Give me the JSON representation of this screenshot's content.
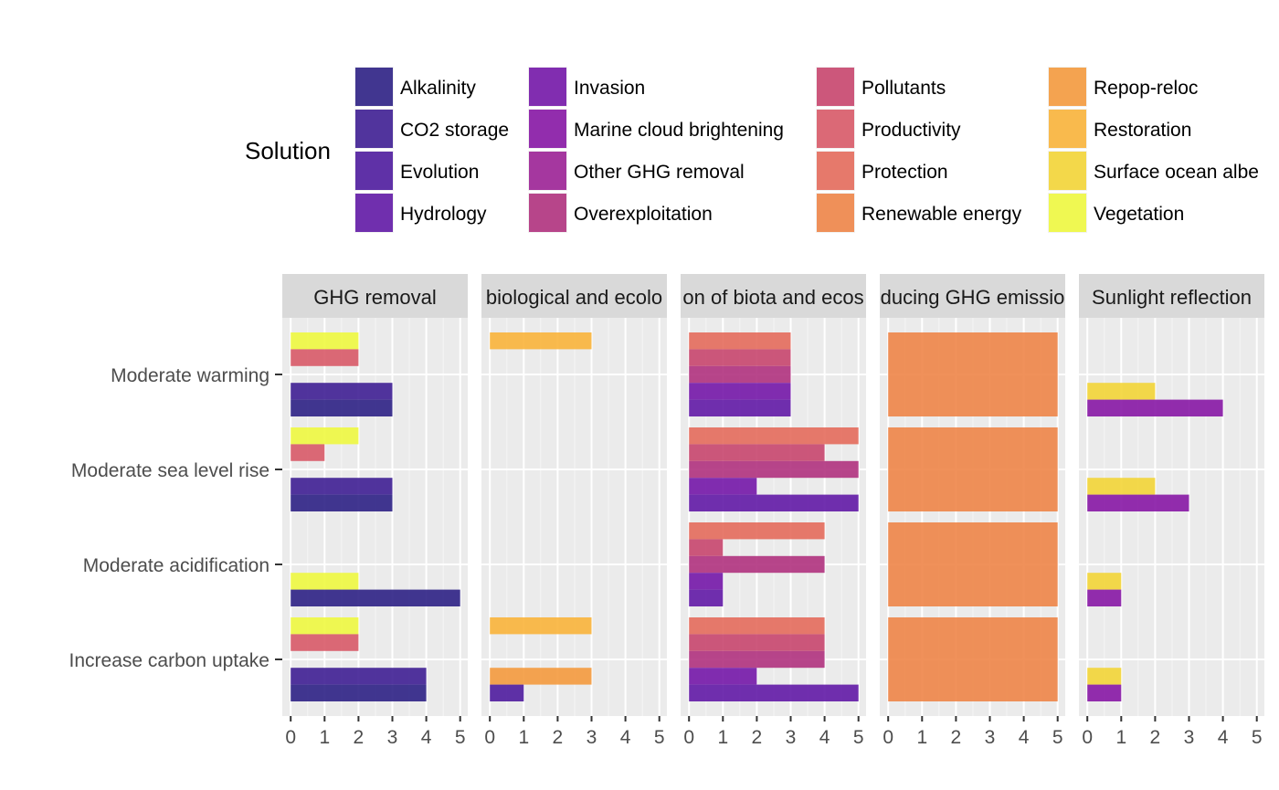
{
  "chart_data": {
    "type": "bar",
    "orientation": "horizontal",
    "facets": [
      "GHG removal",
      "biological and ecolo",
      "on of biota and ecos",
      "ducing GHG emissio",
      "Sunlight reflection"
    ],
    "categories": [
      "Moderate warming",
      "Moderate sea level rise",
      "Moderate acidification",
      "Increase carbon uptake"
    ],
    "xlim": [
      0,
      5.2
    ],
    "xticks": [
      "0",
      "1",
      "2",
      "3",
      "4",
      "5"
    ],
    "grid": true,
    "legend": {
      "title": "Solution",
      "position": "top",
      "items": [
        {
          "label": "Alkalinity",
          "color": "#2E2185"
        },
        {
          "label": "CO2 storage",
          "color": "#3F1F93"
        },
        {
          "label": "Evolution",
          "color": "#4F1C9E"
        },
        {
          "label": "Hydrology",
          "color": "#621AA6"
        },
        {
          "label": "Invasion",
          "color": "#7417A8"
        },
        {
          "label": "Marine cloud brightening",
          "color": "#8717A5"
        },
        {
          "label": "Other GHG removal",
          "color": "#9C2296"
        },
        {
          "label": "Overexploitation",
          "color": "#B0327E"
        },
        {
          "label": "Pollutants",
          "color": "#C8466E"
        },
        {
          "label": "Productivity",
          "color": "#D85A68"
        },
        {
          "label": "Protection",
          "color": "#E46B5C"
        },
        {
          "label": "Renewable energy",
          "color": "#EE8548"
        },
        {
          "label": "Repop-reloc",
          "color": "#F49A3E"
        },
        {
          "label": "Restoration",
          "color": "#FAB43B"
        },
        {
          "label": "Surface ocean albe",
          "color": "#F3D537"
        },
        {
          "label": "Vegetation",
          "color": "#EEF840"
        }
      ]
    },
    "panels": [
      {
        "facet": 0,
        "category": 0,
        "bars": [
          {
            "solution": "Vegetation",
            "value": 2
          },
          {
            "solution": "Productivity",
            "value": 2
          },
          {
            "solution": "CO2 storage",
            "value": 3
          },
          {
            "solution": "Alkalinity",
            "value": 3
          }
        ]
      },
      {
        "facet": 0,
        "category": 1,
        "bars": [
          {
            "solution": "Vegetation",
            "value": 2
          },
          {
            "solution": "Productivity",
            "value": 1
          },
          {
            "solution": "CO2 storage",
            "value": 3
          },
          {
            "solution": "Alkalinity",
            "value": 3
          }
        ]
      },
      {
        "facet": 0,
        "category": 2,
        "bars": [
          {
            "solution": "Vegetation",
            "value": 2
          },
          {
            "solution": "Alkalinity",
            "value": 5
          }
        ]
      },
      {
        "facet": 0,
        "category": 3,
        "bars": [
          {
            "solution": "Vegetation",
            "value": 2
          },
          {
            "solution": "Productivity",
            "value": 2
          },
          {
            "solution": "CO2 storage",
            "value": 4
          },
          {
            "solution": "Alkalinity",
            "value": 4
          }
        ]
      },
      {
        "facet": 1,
        "category": 0,
        "bars": [
          {
            "solution": "Restoration",
            "value": 3
          }
        ]
      },
      {
        "facet": 1,
        "category": 3,
        "bars": [
          {
            "solution": "Restoration",
            "value": 3
          },
          {
            "solution": "Repop-reloc",
            "value": 3
          },
          {
            "solution": "Evolution",
            "value": 1
          }
        ]
      },
      {
        "facet": 2,
        "category": 0,
        "bars": [
          {
            "solution": "Protection",
            "value": 3
          },
          {
            "solution": "Pollutants",
            "value": 3
          },
          {
            "solution": "Overexploitation",
            "value": 3
          },
          {
            "solution": "Invasion",
            "value": 3
          },
          {
            "solution": "Hydrology",
            "value": 3
          }
        ]
      },
      {
        "facet": 2,
        "category": 1,
        "bars": [
          {
            "solution": "Protection",
            "value": 5
          },
          {
            "solution": "Pollutants",
            "value": 4
          },
          {
            "solution": "Overexploitation",
            "value": 5
          },
          {
            "solution": "Invasion",
            "value": 2
          },
          {
            "solution": "Hydrology",
            "value": 5
          }
        ]
      },
      {
        "facet": 2,
        "category": 2,
        "bars": [
          {
            "solution": "Protection",
            "value": 4
          },
          {
            "solution": "Pollutants",
            "value": 1
          },
          {
            "solution": "Overexploitation",
            "value": 4
          },
          {
            "solution": "Invasion",
            "value": 1
          },
          {
            "solution": "Hydrology",
            "value": 1
          }
        ]
      },
      {
        "facet": 2,
        "category": 3,
        "bars": [
          {
            "solution": "Protection",
            "value": 4
          },
          {
            "solution": "Pollutants",
            "value": 4
          },
          {
            "solution": "Overexploitation",
            "value": 4
          },
          {
            "solution": "Invasion",
            "value": 2
          },
          {
            "solution": "Hydrology",
            "value": 5
          }
        ]
      },
      {
        "facet": 3,
        "category": 0,
        "bars": [
          {
            "solution": "Renewable energy",
            "value": 5
          }
        ]
      },
      {
        "facet": 3,
        "category": 1,
        "bars": [
          {
            "solution": "Renewable energy",
            "value": 5
          }
        ]
      },
      {
        "facet": 3,
        "category": 2,
        "bars": [
          {
            "solution": "Renewable energy",
            "value": 5
          }
        ]
      },
      {
        "facet": 3,
        "category": 3,
        "bars": [
          {
            "solution": "Renewable energy",
            "value": 5
          }
        ]
      },
      {
        "facet": 4,
        "category": 0,
        "bars": [
          {
            "solution": "Surface ocean albe",
            "value": 2
          },
          {
            "solution": "Marine cloud brightening",
            "value": 4
          }
        ]
      },
      {
        "facet": 4,
        "category": 1,
        "bars": [
          {
            "solution": "Surface ocean albe",
            "value": 2
          },
          {
            "solution": "Marine cloud brightening",
            "value": 3
          }
        ]
      },
      {
        "facet": 4,
        "category": 2,
        "bars": [
          {
            "solution": "Surface ocean albe",
            "value": 1
          },
          {
            "solution": "Marine cloud brightening",
            "value": 1
          }
        ]
      },
      {
        "facet": 4,
        "category": 3,
        "bars": [
          {
            "solution": "Surface ocean albe",
            "value": 1
          },
          {
            "solution": "Marine cloud brightening",
            "value": 1
          }
        ]
      }
    ]
  }
}
